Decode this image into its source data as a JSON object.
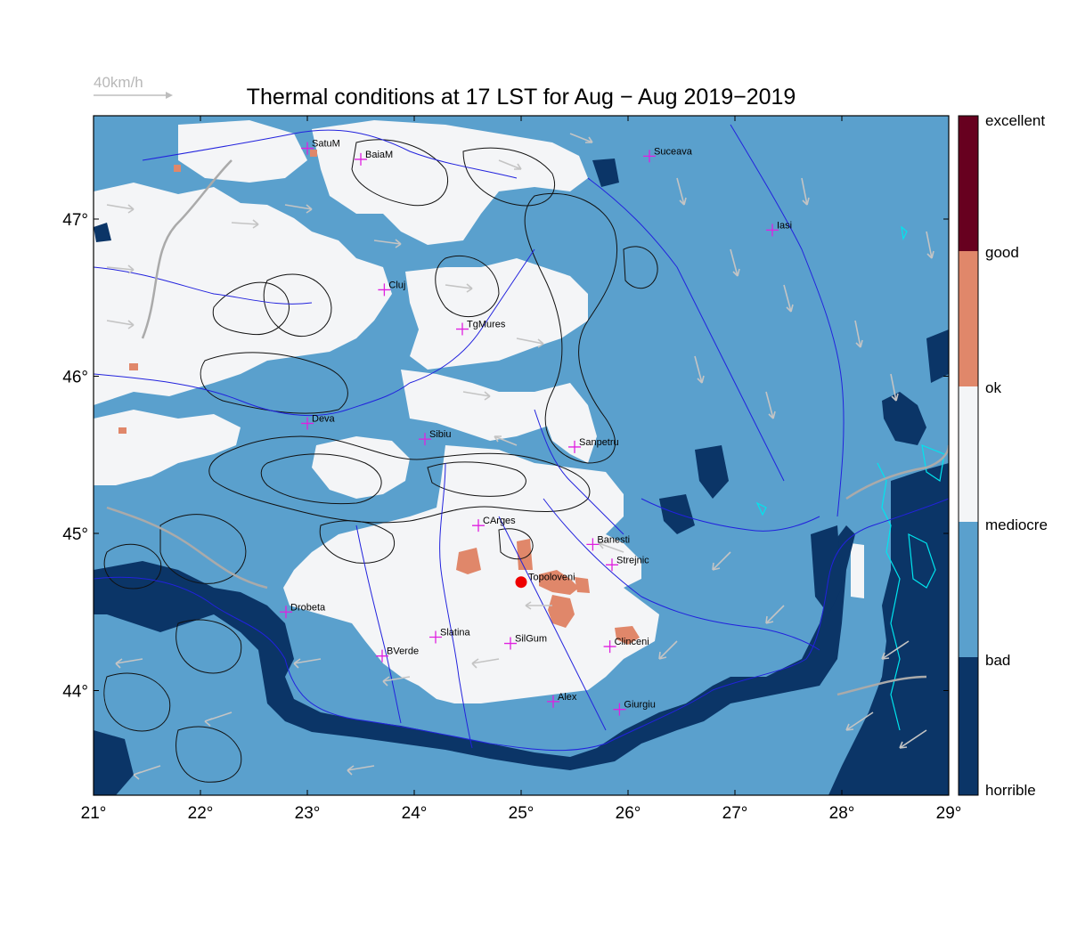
{
  "title": "Thermal conditions at 17 LST for Aug − Aug  2019−2019",
  "wind_scale": {
    "label": "40km/h"
  },
  "axes": {
    "lon_ticks": [
      "21°",
      "22°",
      "23°",
      "24°",
      "25°",
      "26°",
      "27°",
      "28°",
      "29°"
    ],
    "lat_ticks": [
      "44°",
      "45°",
      "46°",
      "47°"
    ]
  },
  "legend": {
    "categories": [
      {
        "label": "excellent",
        "color": "#67001f"
      },
      {
        "label": "good",
        "color": "#e0876a"
      },
      {
        "label": "ok",
        "color": "#f4f5f7"
      },
      {
        "label": "mediocre",
        "color": "#5aa0cd"
      },
      {
        "label": "bad",
        "color": "#0b3567"
      },
      {
        "label": "horrible",
        "color": null
      }
    ]
  },
  "colors": {
    "excellent": "#67001f",
    "good": "#e0876a",
    "ok": "#f4f5f7",
    "mediocre": "#5aa0cd",
    "bad": "#0b3567",
    "rivers": "#2222dd",
    "roads": "#aaaaaa",
    "contours": "#111111",
    "station_marker": "#e020e0",
    "site_marker": "#ee0000",
    "lakes": "#00e5ee"
  },
  "stations": [
    {
      "name": "SatuM",
      "lon": 23.0,
      "lat": 47.45
    },
    {
      "name": "BaiaM",
      "lon": 23.5,
      "lat": 47.38
    },
    {
      "name": "Suceava",
      "lon": 26.2,
      "lat": 47.4
    },
    {
      "name": "Iasi",
      "lon": 27.35,
      "lat": 46.93
    },
    {
      "name": "Cluj",
      "lon": 23.72,
      "lat": 46.55
    },
    {
      "name": "TgMures",
      "lon": 24.45,
      "lat": 46.3
    },
    {
      "name": "Deva",
      "lon": 23.0,
      "lat": 45.7
    },
    {
      "name": "Sibiu",
      "lon": 24.1,
      "lat": 45.6
    },
    {
      "name": "Sanpetru",
      "lon": 25.5,
      "lat": 45.55
    },
    {
      "name": "CArges",
      "lon": 24.6,
      "lat": 45.05
    },
    {
      "name": "Banesti",
      "lon": 25.67,
      "lat": 44.93
    },
    {
      "name": "Strejnic",
      "lon": 25.85,
      "lat": 44.8
    },
    {
      "name": "Drobeta",
      "lon": 22.8,
      "lat": 44.5
    },
    {
      "name": "Slatina",
      "lon": 24.2,
      "lat": 44.34
    },
    {
      "name": "SilGum",
      "lon": 24.9,
      "lat": 44.3
    },
    {
      "name": "Clinceni",
      "lon": 25.83,
      "lat": 44.28
    },
    {
      "name": "BVerde",
      "lon": 23.7,
      "lat": 44.22
    },
    {
      "name": "Alex",
      "lon": 25.3,
      "lat": 43.93
    },
    {
      "name": "Giurgiu",
      "lon": 25.92,
      "lat": 43.88
    }
  ],
  "site": {
    "name": "Topoloveni",
    "lon": 25.0,
    "lat": 44.69
  }
}
